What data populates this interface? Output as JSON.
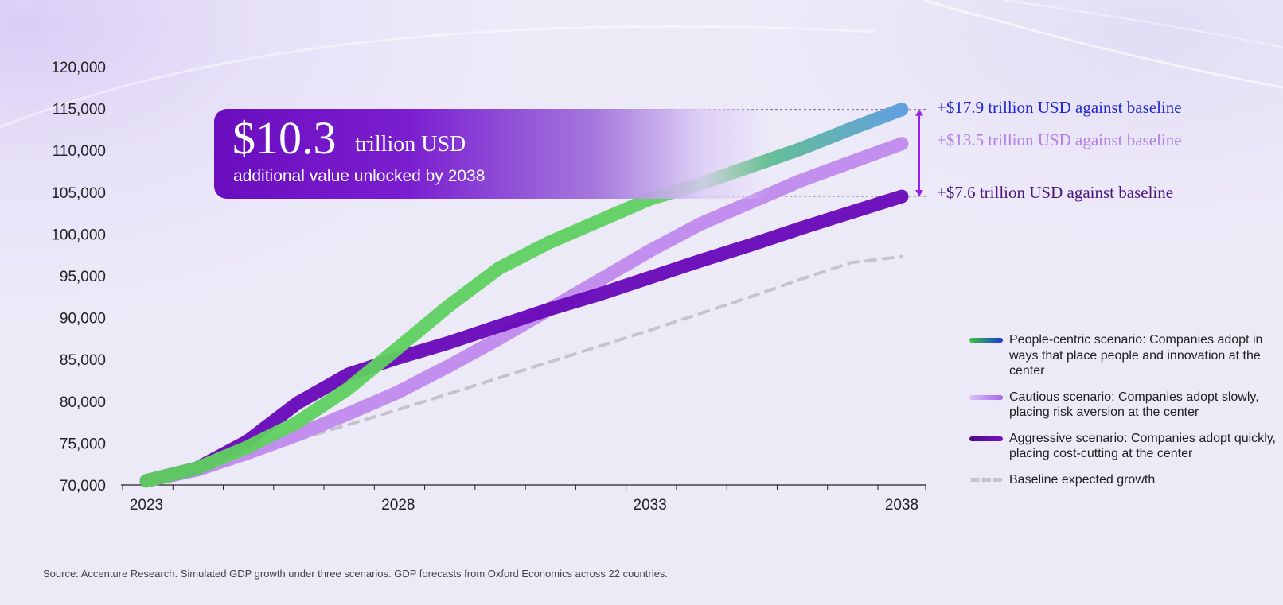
{
  "chart_data": {
    "type": "line",
    "title": "",
    "xlabel": "",
    "ylabel": "",
    "ylim": [
      70000,
      120000
    ],
    "xlim": [
      2023,
      2038
    ],
    "yticks": [
      70000,
      75000,
      80000,
      85000,
      90000,
      95000,
      100000,
      105000,
      110000,
      115000,
      120000
    ],
    "ytick_labels": [
      "70,000",
      "75,000",
      "80,000",
      "85,000",
      "90,000",
      "95,000",
      "100,000",
      "105,000",
      "110,000",
      "115,000",
      "120,000"
    ],
    "xtick_labels": [
      {
        "year": 2023,
        "label": "2023"
      },
      {
        "year": 2028,
        "label": "2028"
      },
      {
        "year": 2033,
        "label": "2033"
      },
      {
        "year": 2038,
        "label": "2038"
      }
    ],
    "x": [
      2023,
      2024,
      2025,
      2026,
      2027,
      2028,
      2029,
      2030,
      2031,
      2032,
      2033,
      2034,
      2035,
      2036,
      2037,
      2038
    ],
    "series": [
      {
        "name": "baseline",
        "label": "Baseline expected growth",
        "color": "#c6c2cf",
        "dashed": true,
        "values": [
          70500,
          72000,
          73700,
          75400,
          77200,
          79000,
          80900,
          82800,
          84700,
          86600,
          88500,
          90500,
          92500,
          94600,
          96600,
          97300
        ]
      },
      {
        "name": "cautious",
        "label": "Cautious scenario: Companies adopt slowly, placing risk aversion at the center",
        "color": "#c08aee",
        "values": [
          70500,
          71800,
          73800,
          76000,
          78500,
          81100,
          84200,
          87500,
          91000,
          94500,
          98000,
          101200,
          103800,
          106400,
          108600,
          110800
        ]
      },
      {
        "name": "aggressive",
        "label": "Aggressive scenario: Companies adopt quickly, placing cost-cutting at the center",
        "color": "#6a0bba",
        "values": [
          70500,
          72000,
          75200,
          79800,
          83200,
          85200,
          87000,
          89000,
          91000,
          92800,
          94800,
          96800,
          98700,
          100700,
          102600,
          104500
        ]
      },
      {
        "name": "people_centric",
        "label": "People-centric scenario: Companies adopt in ways that place people and innovation at the center",
        "color": "#5fd060",
        "values": [
          70500,
          72000,
          74500,
          77500,
          81500,
          86400,
          91400,
          95900,
          99000,
          101600,
          104200,
          106000,
          108100,
          110200,
          112600,
          114900
        ]
      }
    ],
    "callout": {
      "value": "$10.3",
      "unit": "trillion USD",
      "subtitle": "additional value unlocked by 2038"
    },
    "annotations": [
      {
        "text": "+$17.9 trillion USD against baseline",
        "color": "#1f26d6",
        "y_value": 115000
      },
      {
        "text": "+$13.5 trillion USD against baseline",
        "color": "#b27ee8",
        "y_value": 111000
      },
      {
        "text": "+$7.6 trillion USD against baseline",
        "color": "#4a1780",
        "y_value": 104800
      }
    ],
    "bracket": {
      "top": 114900,
      "bottom": 104500,
      "color": "#9a1fe8"
    },
    "legend_position": "right",
    "grid": false
  },
  "source": "Source: Accenture Research. Simulated GDP growth under three scenarios. GDP forecasts from Oxford Economics across 22 countries."
}
